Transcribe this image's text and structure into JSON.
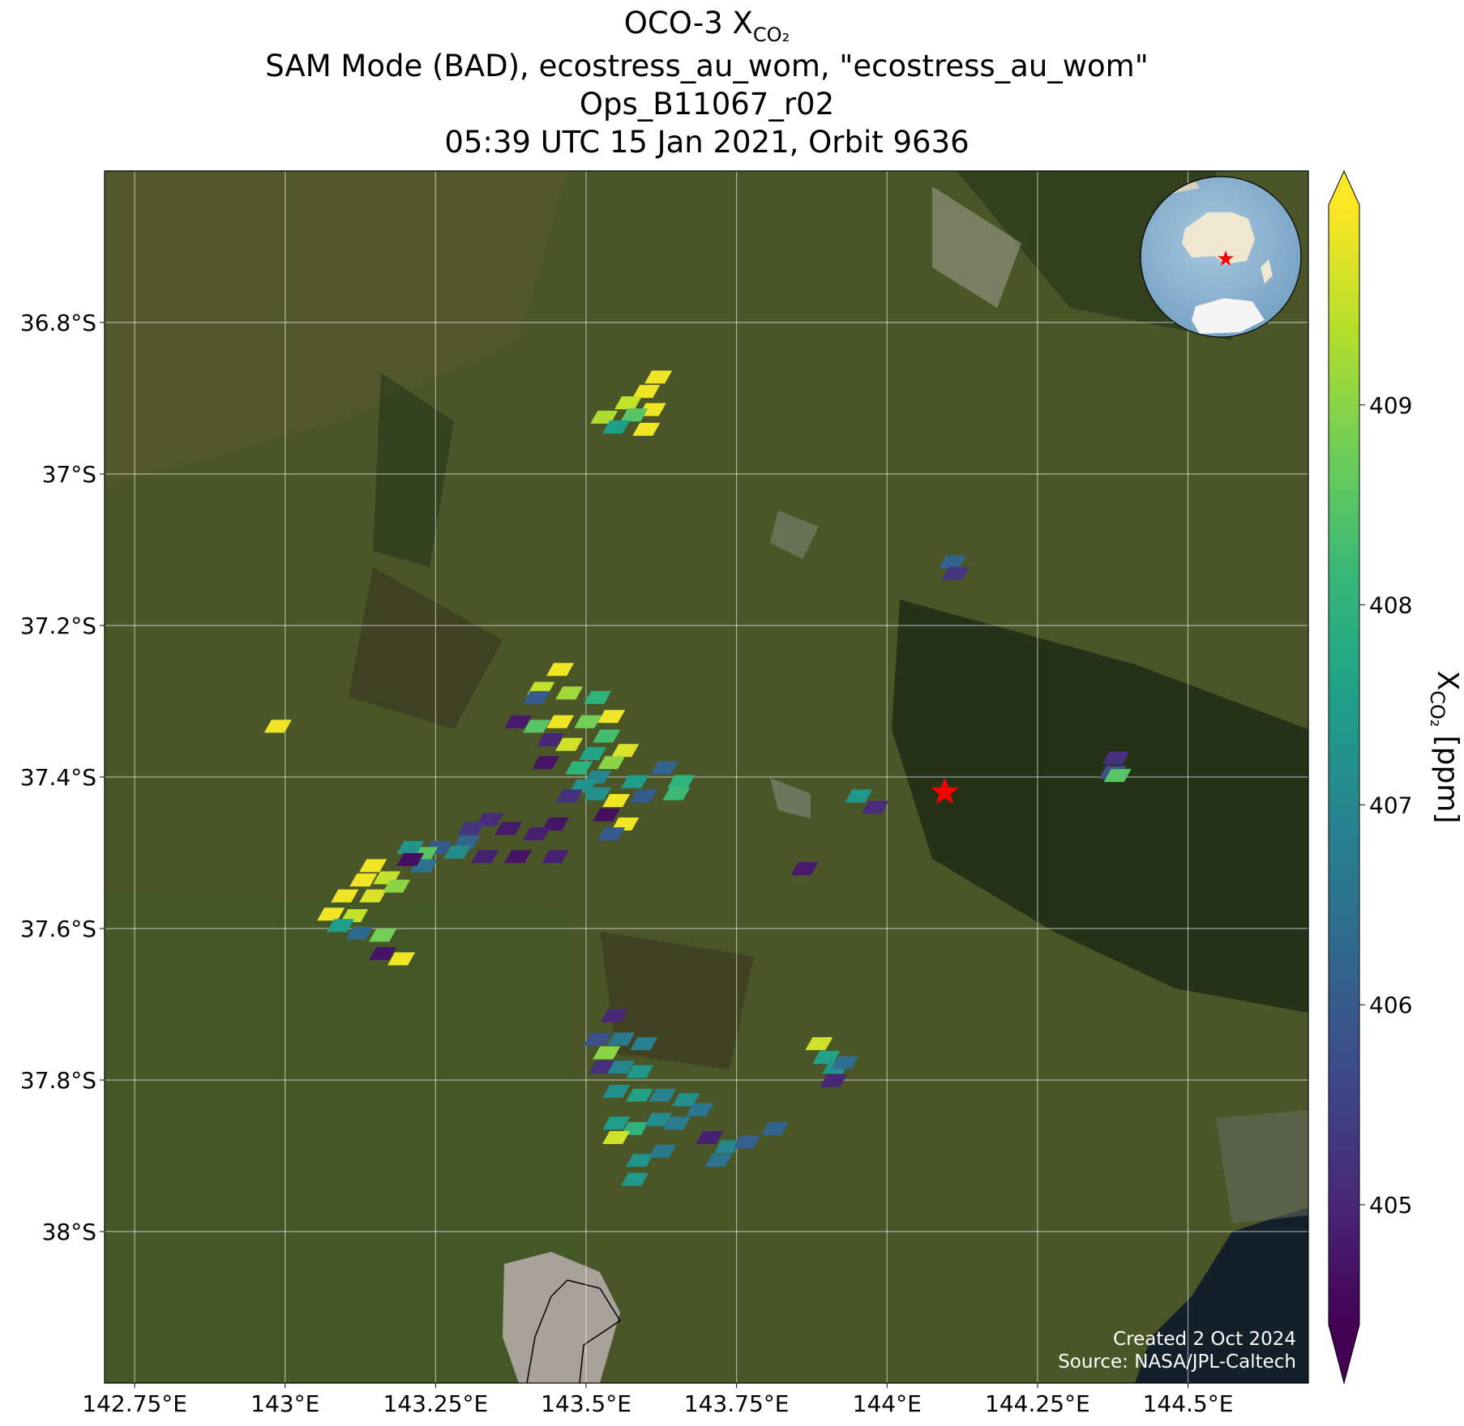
{
  "chart_data": {
    "type": "map",
    "title": "OCO-3 X",
    "title_subscript": "CO₂",
    "subtitle_lines": [
      "SAM Mode (BAD), ecostress_au_wom, \"ecostress_au_wom\"",
      "Ops_B11067_r02",
      "05:39 UTC 15 Jan 2021, Orbit 9636"
    ],
    "xlim": [
      142.7,
      144.7
    ],
    "ylim": [
      -36.6,
      -38.2
    ],
    "xticks": [
      {
        "value": 142.75,
        "label": "142.75°E"
      },
      {
        "value": 143.0,
        "label": "143°E"
      },
      {
        "value": 143.25,
        "label": "143.25°E"
      },
      {
        "value": 143.5,
        "label": "143.5°E"
      },
      {
        "value": 143.75,
        "label": "143.75°E"
      },
      {
        "value": 144.0,
        "label": "144°E"
      },
      {
        "value": 144.25,
        "label": "144.25°E"
      },
      {
        "value": 144.5,
        "label": "144.5°E"
      }
    ],
    "yticks": [
      {
        "value": -36.8,
        "label": "36.8°S"
      },
      {
        "value": -37.0,
        "label": "37°S"
      },
      {
        "value": -37.2,
        "label": "37.2°S"
      },
      {
        "value": -37.4,
        "label": "37.4°S"
      },
      {
        "value": -37.6,
        "label": "37.6°S"
      },
      {
        "value": -37.8,
        "label": "37.8°S"
      },
      {
        "value": -38.0,
        "label": "38°S"
      }
    ],
    "grid": true,
    "clim": [
      404.4,
      410.0
    ],
    "cticks": [
      405,
      406,
      407,
      408,
      409
    ],
    "colormap": "viridis",
    "colorbar_label": "X",
    "colorbar_label_subscript": "CO₂",
    "colorbar_label_unit": "[ppm]",
    "target": {
      "lon": 144.096,
      "lat": -37.42,
      "color": "#ff0000"
    },
    "lon": [
      143.62,
      143.6,
      143.57,
      143.61,
      143.53,
      143.58,
      143.55,
      143.6,
      144.109,
      144.114,
      143.457,
      143.425,
      143.418,
      143.472,
      143.519,
      143.542,
      143.387,
      143.418,
      143.457,
      143.503,
      143.534,
      143.565,
      143.441,
      143.472,
      143.511,
      143.542,
      143.433,
      143.488,
      143.519,
      143.495,
      143.472,
      143.519,
      143.581,
      143.596,
      143.55,
      143.534,
      143.565,
      143.542,
      143.63,
      143.658,
      143.65,
      143.449,
      143.418,
      143.371,
      143.34,
      143.309,
      143.301,
      143.286,
      143.254,
      143.231,
      143.208,
      143.231,
      143.332,
      143.387,
      143.449,
      143.208,
      143.146,
      143.13,
      143.169,
      143.099,
      143.146,
      143.185,
      143.076,
      143.115,
      143.092,
      143.123,
      143.162,
      143.162,
      143.193,
      142.988,
      143.953,
      143.98,
      143.863,
      144.38,
      144.375,
      144.383,
      143.887,
      143.899,
      143.915,
      143.93,
      143.911,
      143.547,
      143.519,
      143.558,
      143.596,
      143.527,
      143.558,
      143.589,
      143.55,
      143.589,
      143.627,
      143.666,
      143.55,
      143.581,
      143.62,
      143.651,
      143.689,
      143.705,
      143.735,
      143.767,
      143.72,
      143.55,
      143.589,
      143.627,
      143.581,
      143.814,
      143.534
    ],
    "lat": [
      -36.872,
      -36.891,
      -36.906,
      -36.915,
      -36.925,
      -36.922,
      -36.938,
      -36.941,
      -37.116,
      -37.131,
      -37.258,
      -37.283,
      -37.295,
      -37.289,
      -37.295,
      -37.32,
      -37.327,
      -37.333,
      -37.327,
      -37.327,
      -37.346,
      -37.365,
      -37.351,
      -37.357,
      -37.369,
      -37.381,
      -37.381,
      -37.388,
      -37.4,
      -37.412,
      -37.425,
      -37.422,
      -37.406,
      -37.425,
      -37.431,
      -37.45,
      -37.462,
      -37.475,
      -37.388,
      -37.406,
      -37.422,
      -37.462,
      -37.475,
      -37.468,
      -37.456,
      -37.468,
      -37.486,
      -37.499,
      -37.493,
      -37.501,
      -37.493,
      -37.517,
      -37.505,
      -37.505,
      -37.505,
      -37.509,
      -37.517,
      -37.536,
      -37.533,
      -37.557,
      -37.557,
      -37.544,
      -37.581,
      -37.583,
      -37.596,
      -37.606,
      -37.609,
      -37.633,
      -37.64,
      -37.333,
      -37.425,
      -37.44,
      -37.521,
      -37.375,
      -37.394,
      -37.398,
      -37.752,
      -37.77,
      -37.783,
      -37.777,
      -37.801,
      -37.715,
      -37.746,
      -37.746,
      -37.752,
      -37.783,
      -37.783,
      -37.789,
      -37.815,
      -37.82,
      -37.82,
      -37.826,
      -37.857,
      -37.864,
      -37.852,
      -37.857,
      -37.839,
      -37.876,
      -37.888,
      -37.882,
      -37.906,
      -37.876,
      -37.906,
      -37.894,
      -37.931,
      -37.864,
      -37.764
    ],
    "values": [
      409.9,
      409.9,
      409.5,
      409.9,
      409.3,
      408.5,
      407.5,
      409.9,
      406.2,
      405.3,
      409.9,
      409.5,
      406.0,
      409.2,
      408.0,
      409.9,
      404.8,
      408.5,
      409.9,
      408.8,
      408.3,
      409.7,
      405.0,
      409.6,
      407.6,
      409.0,
      404.7,
      408.0,
      407.0,
      407.3,
      405.2,
      407.2,
      407.5,
      406.0,
      409.9,
      404.6,
      409.9,
      406.0,
      406.2,
      408.0,
      408.2,
      404.7,
      404.9,
      404.8,
      405.1,
      405.3,
      406.2,
      407.1,
      406.0,
      408.5,
      407.3,
      406.5,
      404.9,
      404.7,
      404.9,
      404.6,
      409.9,
      409.9,
      409.5,
      409.9,
      409.7,
      409.0,
      409.9,
      409.5,
      407.5,
      406.3,
      408.8,
      404.7,
      409.9,
      409.9,
      407.4,
      405.1,
      404.8,
      405.2,
      405.8,
      408.5,
      409.6,
      407.6,
      407.3,
      406.4,
      405.0,
      405.0,
      405.8,
      406.7,
      406.9,
      405.2,
      407.0,
      407.4,
      407.2,
      407.6,
      406.9,
      407.2,
      407.5,
      408.0,
      407.1,
      406.8,
      406.6,
      404.9,
      407.0,
      406.1,
      406.5,
      409.6,
      407.3,
      406.7,
      407.4,
      406.2,
      409.0
    ],
    "credit_lines": [
      "Created 2 Oct 2024",
      "Source: NASA/JPL-Caltech"
    ]
  }
}
